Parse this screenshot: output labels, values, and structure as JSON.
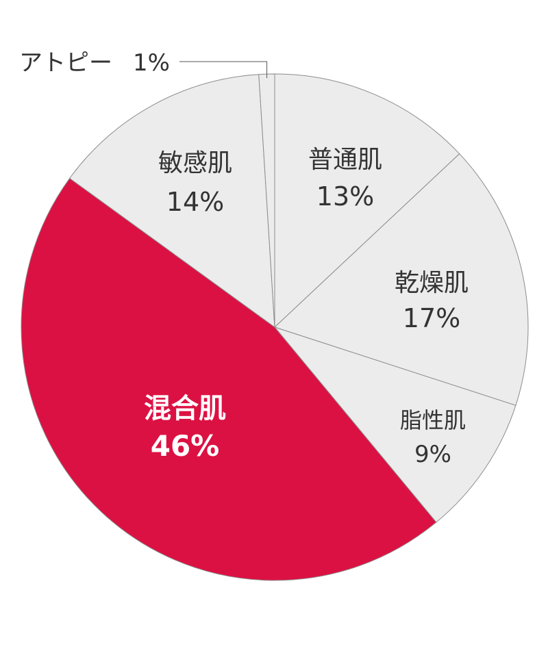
{
  "chart_data": {
    "type": "pie",
    "title": "",
    "start": "12 o'clock",
    "direction": "clockwise",
    "slices": [
      {
        "label": "普通肌",
        "value": 13,
        "value_label": "13%",
        "color": "#ececec",
        "label_color": "#333333"
      },
      {
        "label": "乾燥肌",
        "value": 17,
        "value_label": "17%",
        "color": "#ececec",
        "label_color": "#333333"
      },
      {
        "label": "脂性肌",
        "value": 9,
        "value_label": "9%",
        "color": "#ececec",
        "label_color": "#333333"
      },
      {
        "label": "混合肌",
        "value": 46,
        "value_label": "46%",
        "color": "#dc1143",
        "label_color": "#ffffff"
      },
      {
        "label": "敏感肌",
        "value": 14,
        "value_label": "14%",
        "color": "#ececec",
        "label_color": "#333333"
      },
      {
        "label": "アトピー",
        "value": 1,
        "value_label": "1%",
        "color": "#ececec",
        "label_color": "#333333",
        "label_outside": true
      }
    ],
    "slice_border_color": "#8c8c8c"
  }
}
